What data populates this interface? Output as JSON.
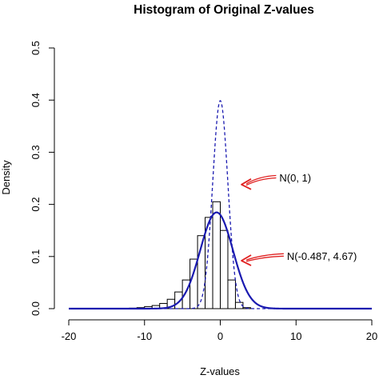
{
  "chart_data": {
    "type": "histogram",
    "title": "Histogram of Original Z-values",
    "xlabel": "Z-values",
    "ylabel": "Density",
    "xlim": [
      -20,
      20
    ],
    "ylim": [
      0,
      0.5
    ],
    "x_ticks": [
      -20,
      -10,
      0,
      10,
      20
    ],
    "y_ticks": [
      0.0,
      0.1,
      0.2,
      0.3,
      0.4,
      0.5
    ],
    "x_tick_labels": [
      "-20",
      "-10",
      "0",
      "10",
      "20"
    ],
    "y_tick_labels": [
      "0.0",
      "0.1",
      "0.2",
      "0.3",
      "0.4",
      "0.5"
    ],
    "grid": false,
    "histogram": {
      "bin_width": 1,
      "bins": [
        {
          "x0": -12,
          "x1": -11,
          "density": 0.001
        },
        {
          "x0": -11,
          "x1": -10,
          "density": 0.002
        },
        {
          "x0": -10,
          "x1": -9,
          "density": 0.004
        },
        {
          "x0": -9,
          "x1": -8,
          "density": 0.006
        },
        {
          "x0": -8,
          "x1": -7,
          "density": 0.01
        },
        {
          "x0": -7,
          "x1": -6,
          "density": 0.018
        },
        {
          "x0": -6,
          "x1": -5,
          "density": 0.032
        },
        {
          "x0": -5,
          "x1": -4,
          "density": 0.055
        },
        {
          "x0": -4,
          "x1": -3,
          "density": 0.095
        },
        {
          "x0": -3,
          "x1": -2,
          "density": 0.14
        },
        {
          "x0": -2,
          "x1": -1,
          "density": 0.175
        },
        {
          "x0": -1,
          "x1": 0,
          "density": 0.205
        },
        {
          "x0": 0,
          "x1": 1,
          "density": 0.15
        },
        {
          "x0": 1,
          "x1": 2,
          "density": 0.055
        },
        {
          "x0": 2,
          "x1": 3,
          "density": 0.012
        },
        {
          "x0": 3,
          "x1": 4,
          "density": 0.002
        }
      ],
      "fill": "#ffffff",
      "stroke": "#000000"
    },
    "curves": [
      {
        "mean": 0,
        "variance": 1,
        "style": "dashed",
        "color": "#1a1ab0"
      },
      {
        "mean": -0.487,
        "variance": 4.67,
        "style": "solid",
        "color": "#1a1ab0"
      }
    ],
    "annotations": [
      {
        "text": "N(0, 1)",
        "x": 7.8,
        "y": 0.25,
        "arrow_to": [
          2.8,
          0.238
        ],
        "arrow_color": "#e02020"
      },
      {
        "text": "N(-0.487, 4.67)",
        "x": 8.8,
        "y": 0.1,
        "arrow_to": [
          2.8,
          0.092
        ],
        "arrow_color": "#e02020"
      }
    ]
  }
}
